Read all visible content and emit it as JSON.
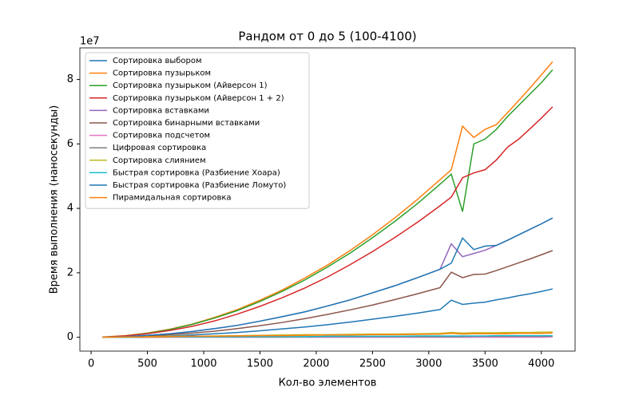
{
  "chart_data": {
    "type": "line",
    "title": "Рандом от 0 до 5 (100-4100)",
    "x_label": "Кол-во элементов",
    "y_label": "Время выполнения (наносекунды)",
    "y_multiplier": "1e7",
    "x": [
      100,
      300,
      500,
      700,
      900,
      1100,
      1300,
      1500,
      1700,
      1900,
      2100,
      2300,
      2500,
      2700,
      2900,
      3100,
      3200,
      3300,
      3400,
      3500,
      3600,
      3700,
      3800,
      3900,
      4000,
      4100
    ],
    "xlim": [
      -100,
      4300
    ],
    "xticks": [
      0,
      500,
      1000,
      1500,
      2000,
      2500,
      3000,
      3500,
      4000
    ],
    "ylim": [
      -0.43,
      8.98
    ],
    "yticks": [
      0,
      2,
      4,
      6,
      8
    ],
    "grid": false,
    "legend": "upper left",
    "series": [
      {
        "name": "Сортировка выбором",
        "color": "#1f77b4",
        "values": [
          0.0,
          0.01,
          0.02,
          0.04,
          0.07,
          0.11,
          0.15,
          0.2,
          0.26,
          0.32,
          0.39,
          0.47,
          0.56,
          0.65,
          0.75,
          0.86,
          1.15,
          1.02,
          1.06,
          1.09,
          1.16,
          1.22,
          1.29,
          1.35,
          1.42,
          1.5
        ]
      },
      {
        "name": "Сортировка пузырьком",
        "color": "#ff7f0e",
        "values": [
          0.01,
          0.05,
          0.13,
          0.25,
          0.41,
          0.62,
          0.86,
          1.15,
          1.47,
          1.84,
          2.24,
          2.69,
          3.18,
          3.71,
          4.28,
          4.89,
          5.2,
          6.55,
          6.2,
          6.45,
          6.6,
          6.97,
          7.35,
          7.74,
          8.14,
          8.55
        ]
      },
      {
        "name": "Сортировка пузырьком (Айверсон 1)",
        "color": "#2ca02c",
        "values": [
          0.0,
          0.04,
          0.12,
          0.24,
          0.4,
          0.6,
          0.83,
          1.11,
          1.43,
          1.78,
          2.18,
          2.61,
          3.09,
          3.6,
          4.15,
          4.75,
          5.06,
          3.9,
          6.0,
          6.15,
          6.45,
          6.85,
          7.2,
          7.55,
          7.9,
          8.3
        ]
      },
      {
        "name": "Сортировка пузырьком (Айверсон 1 + 2)",
        "color": "#d62728",
        "values": [
          0.0,
          0.04,
          0.11,
          0.21,
          0.34,
          0.51,
          0.72,
          0.96,
          1.23,
          1.53,
          1.87,
          2.25,
          2.66,
          3.1,
          3.57,
          4.08,
          4.35,
          4.95,
          5.1,
          5.2,
          5.5,
          5.9,
          6.15,
          6.47,
          6.8,
          7.15
        ]
      },
      {
        "name": "Сортировка вставками",
        "color": "#9467bd",
        "values": [
          0.0,
          0.02,
          0.06,
          0.11,
          0.18,
          0.27,
          0.37,
          0.5,
          0.64,
          0.79,
          0.97,
          1.16,
          1.38,
          1.6,
          1.85,
          2.11,
          2.9,
          2.5,
          2.6,
          2.7,
          2.85,
          3.01,
          3.18,
          3.35,
          3.52,
          3.7
        ]
      },
      {
        "name": "Сортировка бинарными вставками",
        "color": "#8c564b",
        "values": [
          0.0,
          0.01,
          0.04,
          0.08,
          0.13,
          0.19,
          0.27,
          0.36,
          0.46,
          0.58,
          0.71,
          0.85,
          1.0,
          1.17,
          1.35,
          1.54,
          2.02,
          1.85,
          1.95,
          1.96,
          2.07,
          2.19,
          2.31,
          2.43,
          2.56,
          2.69
        ]
      },
      {
        "name": "Сортировка подсчетом",
        "color": "#e377c2",
        "values": [
          0,
          0,
          0,
          0,
          0,
          0,
          0,
          0,
          0,
          0,
          0,
          0,
          0,
          0,
          0,
          0,
          0,
          0,
          0,
          0,
          0,
          0,
          0,
          0,
          0,
          0.01
        ]
      },
      {
        "name": "Цифровая сортировка",
        "color": "#7f7f7f",
        "values": [
          0.0,
          0.0,
          0.0,
          0.01,
          0.01,
          0.01,
          0.01,
          0.01,
          0.01,
          0.01,
          0.02,
          0.02,
          0.02,
          0.02,
          0.02,
          0.02,
          0.02,
          0.02,
          0.03,
          0.03,
          0.03,
          0.03,
          0.03,
          0.03,
          0.03,
          0.03
        ]
      },
      {
        "name": "Сортировка слиянием",
        "color": "#bcbd22",
        "values": [
          0.0,
          0.01,
          0.02,
          0.03,
          0.03,
          0.04,
          0.05,
          0.06,
          0.07,
          0.08,
          0.08,
          0.09,
          0.1,
          0.1,
          0.11,
          0.12,
          0.15,
          0.13,
          0.14,
          0.14,
          0.14,
          0.15,
          0.15,
          0.15,
          0.16,
          0.16
        ]
      },
      {
        "name": "Быстрая сортировка (Разбиение Хоара)",
        "color": "#17becf",
        "values": [
          0.0,
          0.0,
          0.01,
          0.01,
          0.01,
          0.01,
          0.02,
          0.02,
          0.02,
          0.02,
          0.03,
          0.03,
          0.03,
          0.03,
          0.04,
          0.04,
          0.04,
          0.04,
          0.04,
          0.04,
          0.05,
          0.05,
          0.05,
          0.05,
          0.05,
          0.05
        ]
      },
      {
        "name": "Быстрая сортировка (Разбиение Ломуто)",
        "color": "#1f77b4",
        "values": [
          0.0,
          0.02,
          0.06,
          0.11,
          0.18,
          0.27,
          0.37,
          0.5,
          0.64,
          0.79,
          0.97,
          1.16,
          1.38,
          1.6,
          1.85,
          2.11,
          2.3,
          3.08,
          2.72,
          2.83,
          2.85,
          3.01,
          3.18,
          3.35,
          3.52,
          3.7
        ]
      },
      {
        "name": "Пирамидальная сортировка",
        "color": "#ff7f0e",
        "values": [
          0.0,
          0.01,
          0.01,
          0.02,
          0.03,
          0.03,
          0.04,
          0.05,
          0.05,
          0.06,
          0.07,
          0.07,
          0.08,
          0.08,
          0.09,
          0.1,
          0.12,
          0.1,
          0.11,
          0.11,
          0.11,
          0.11,
          0.12,
          0.12,
          0.12,
          0.13
        ]
      }
    ]
  }
}
